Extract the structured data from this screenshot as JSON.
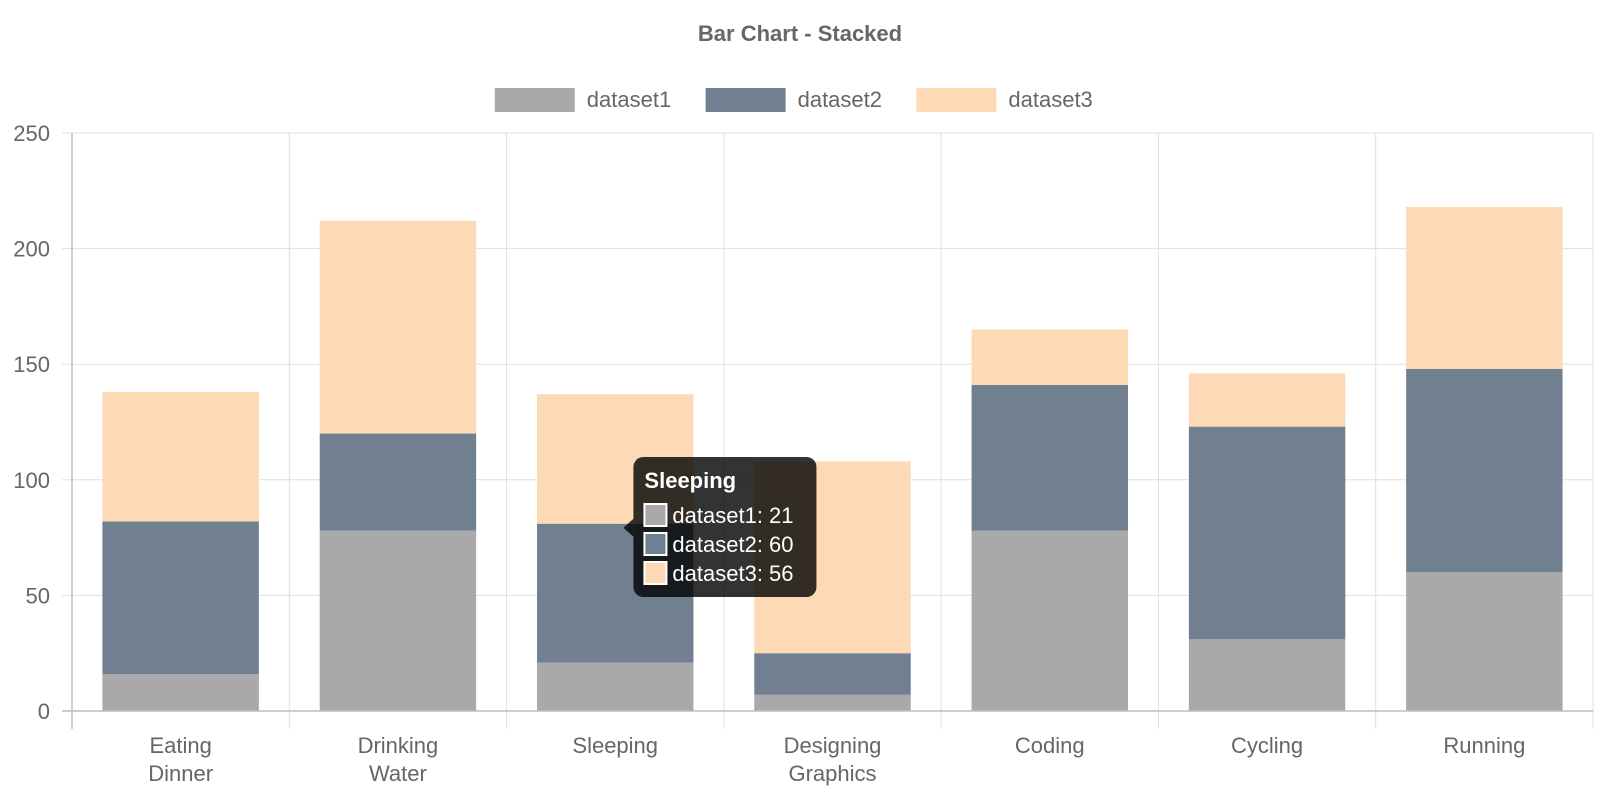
{
  "chart_data": {
    "type": "bar",
    "stacked": true,
    "title": "Bar Chart - Stacked",
    "categories": [
      [
        "Eating",
        "Dinner"
      ],
      [
        "Drinking",
        "Water"
      ],
      [
        "Sleeping"
      ],
      [
        "Designing",
        "Graphics"
      ],
      [
        "Coding"
      ],
      [
        "Cycling"
      ],
      [
        "Running"
      ]
    ],
    "series": [
      {
        "name": "dataset1",
        "color": "#a9a9a9",
        "values": [
          16,
          78,
          21,
          7,
          78,
          31,
          60
        ]
      },
      {
        "name": "dataset2",
        "color": "#708090",
        "values": [
          66,
          42,
          60,
          18,
          63,
          92,
          88
        ]
      },
      {
        "name": "dataset3",
        "color": "#fdd9b5",
        "values": [
          56,
          92,
          56,
          83,
          24,
          23,
          70
        ]
      }
    ],
    "ylim": [
      0,
      250
    ],
    "yticks": [
      0,
      50,
      100,
      150,
      200,
      250
    ],
    "grid": true,
    "legend_position": "top-center",
    "tooltip": {
      "title": "Sleeping",
      "category_index": 2,
      "items": [
        "dataset1: 21",
        "dataset2: 60",
        "dataset3: 56"
      ]
    }
  }
}
